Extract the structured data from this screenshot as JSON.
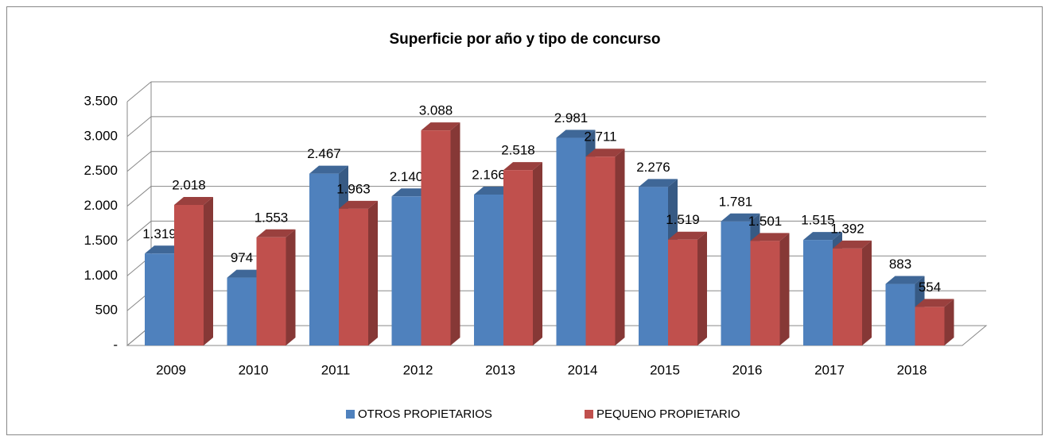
{
  "chart_data": {
    "type": "bar3d",
    "title": "Superficie por año y tipo de concurso",
    "categories": [
      "2009",
      "2010",
      "2011",
      "2012",
      "2013",
      "2014",
      "2015",
      "2016",
      "2017",
      "2018"
    ],
    "series": [
      {
        "name": "OTROS PROPIETARIOS",
        "color": "#4f81bd",
        "values": [
          1319,
          974,
          2467,
          2140,
          2166,
          2981,
          2276,
          1781,
          1515,
          883
        ],
        "value_labels": [
          "1.319",
          "974",
          "2.467",
          "2.140",
          "2.166",
          "2.981",
          "2.276",
          "1.781",
          "1.515",
          "883"
        ]
      },
      {
        "name": "PEQUENO PROPIETARIO",
        "color": "#c0504d",
        "values": [
          2018,
          1553,
          1963,
          3088,
          2518,
          2711,
          1519,
          1501,
          1392,
          554
        ],
        "value_labels": [
          "2.018",
          "1.553",
          "1.963",
          "3.088",
          "2.518",
          "2.711",
          "1.519",
          "1.501",
          "1.392",
          "554"
        ]
      }
    ],
    "ylim": [
      0,
      3500
    ],
    "yticks": [
      {
        "value": 0,
        "label": "-"
      },
      500,
      {
        "value": 1000,
        "label": "1.000"
      },
      {
        "value": 1500,
        "label": "1.500"
      },
      {
        "value": 2000,
        "label": "2.000"
      },
      {
        "value": 2500,
        "label": "2.500"
      },
      {
        "value": 3000,
        "label": "3.000"
      },
      {
        "value": 3500,
        "label": "3.500"
      }
    ],
    "grid": true,
    "legend": "bottom"
  }
}
